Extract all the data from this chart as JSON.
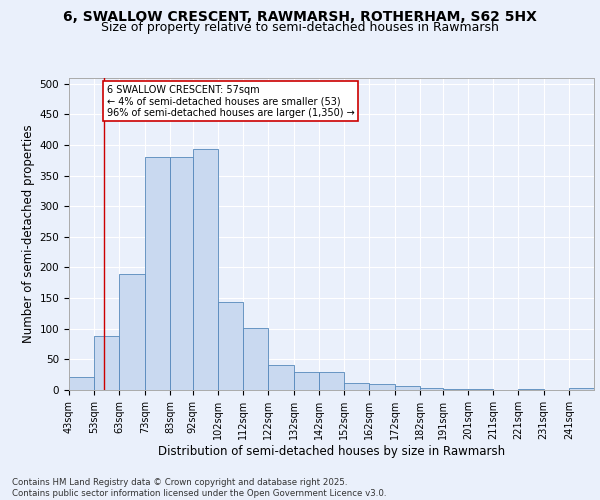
{
  "title1": "6, SWALLOW CRESCENT, RAWMARSH, ROTHERHAM, S62 5HX",
  "title2": "Size of property relative to semi-detached houses in Rawmarsh",
  "xlabel": "Distribution of semi-detached houses by size in Rawmarsh",
  "ylabel": "Number of semi-detached properties",
  "footnote1": "Contains HM Land Registry data © Crown copyright and database right 2025.",
  "footnote2": "Contains public sector information licensed under the Open Government Licence v3.0.",
  "annotation_title": "6 SWALLOW CRESCENT: 57sqm",
  "annotation_line1": "← 4% of semi-detached houses are smaller (53)",
  "annotation_line2": "96% of semi-detached houses are larger (1,350) →",
  "bar_color": "#c9d9f0",
  "bar_edge_color": "#5588bb",
  "property_line_x": 57,
  "property_line_color": "#cc0000",
  "categories": [
    "43sqm",
    "53sqm",
    "63sqm",
    "73sqm",
    "83sqm",
    "92sqm",
    "102sqm",
    "112sqm",
    "122sqm",
    "132sqm",
    "142sqm",
    "152sqm",
    "162sqm",
    "172sqm",
    "182sqm",
    "191sqm",
    "201sqm",
    "211sqm",
    "221sqm",
    "231sqm",
    "241sqm"
  ],
  "bin_edges": [
    43,
    53,
    63,
    73,
    83,
    92,
    102,
    112,
    122,
    132,
    142,
    152,
    162,
    172,
    182,
    191,
    201,
    211,
    221,
    231,
    241
  ],
  "values": [
    22,
    88,
    189,
    380,
    381,
    393,
    143,
    101,
    40,
    29,
    29,
    12,
    9,
    7,
    4,
    2,
    1,
    0,
    1,
    0,
    3
  ],
  "ylim": [
    0,
    510
  ],
  "yticks": [
    0,
    50,
    100,
    150,
    200,
    250,
    300,
    350,
    400,
    450,
    500
  ],
  "bg_color": "#eaf0fb",
  "plot_bg_color": "#eaf0fb",
  "grid_color": "#ffffff",
  "title_fontsize": 10,
  "subtitle_fontsize": 9,
  "tick_fontsize": 7,
  "label_fontsize": 8.5,
  "annotation_box_color": "#ffffff",
  "annotation_box_edge": "#cc0000",
  "footnote_fontsize": 6.2
}
